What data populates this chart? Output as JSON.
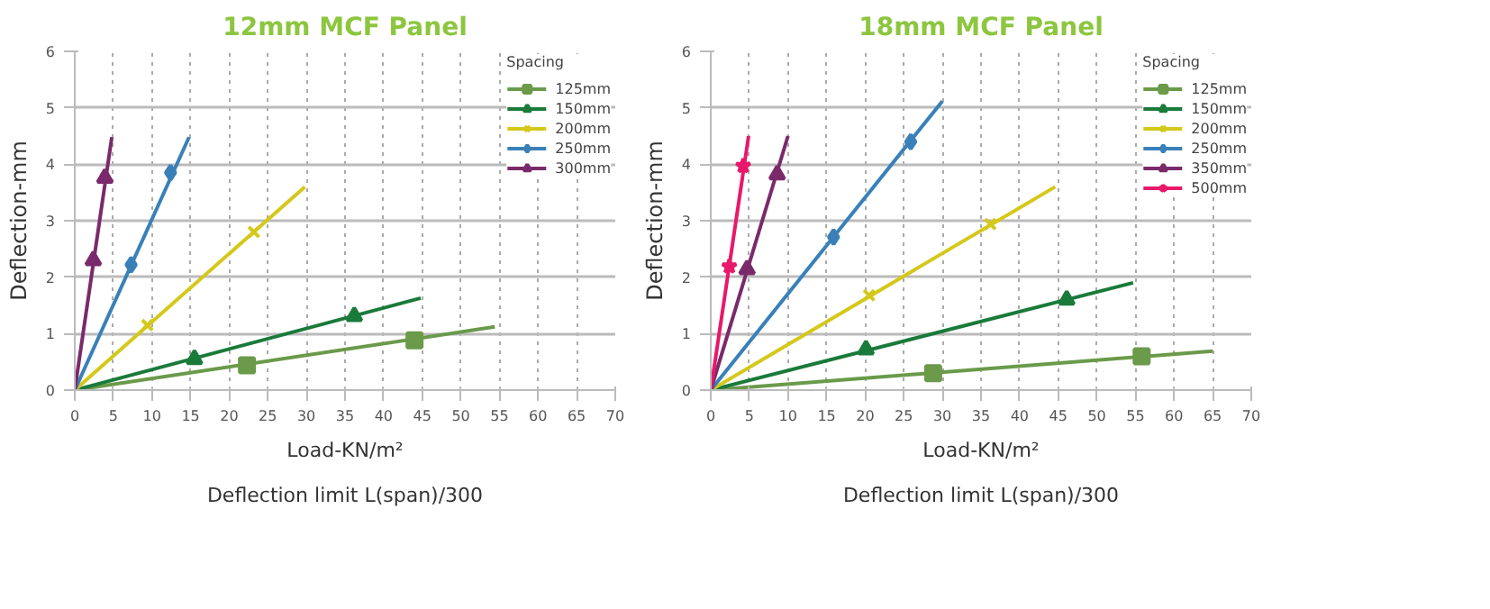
{
  "chart_data": [
    {
      "type": "line",
      "title": "12mm MCF Panel",
      "xlabel": "Load-KN/m²\nDeflection limit L(span)/300",
      "ylabel": "Deflection-mm",
      "legend_title": "Spacing",
      "xlim": [
        0,
        70
      ],
      "ylim": [
        0,
        6
      ],
      "xticks": [
        0,
        5,
        10,
        15,
        20,
        25,
        30,
        35,
        40,
        45,
        50,
        55,
        60,
        65,
        70
      ],
      "yticks": [
        0,
        1,
        2,
        3,
        4,
        5,
        6
      ],
      "grid": true,
      "legend": "right",
      "line_style": "solid",
      "series": [
        {
          "name": "125mm",
          "color": "#6a9a4a",
          "x": [
            0,
            54.4
          ],
          "values": [
            0,
            1.12
          ]
        },
        {
          "type": "scatter",
          "marker": "square",
          "color": "#6a9a4a",
          "x": [
            22.3,
            44
          ],
          "values": [
            0.44,
            0.88
          ]
        },
        {
          "name": "150mm",
          "color": "#1a7a3a",
          "x": [
            0,
            44.8
          ],
          "values": [
            0,
            1.63
          ]
        },
        {
          "type": "scatter",
          "marker": "triangle",
          "color": "#1a7a3a",
          "x": [
            15.5,
            36.2
          ],
          "values": [
            0.55,
            1.31
          ]
        },
        {
          "name": "200mm",
          "color": "#d4c81a",
          "x": [
            0,
            29.8
          ],
          "values": [
            0,
            3.6
          ]
        },
        {
          "type": "scatter",
          "marker": "cross",
          "color": "#d4c81a",
          "x": [
            9.4,
            23.2
          ],
          "values": [
            1.15,
            2.8
          ]
        },
        {
          "name": "250mm",
          "color": "#3a80b8",
          "x": [
            0,
            14.8
          ],
          "values": [
            0,
            4.48
          ]
        },
        {
          "type": "scatter",
          "marker": "diamond",
          "color": "#3a80b8",
          "x": [
            7.3,
            12.4
          ],
          "values": [
            2.22,
            3.85
          ]
        },
        {
          "name": "300mm",
          "color": "#7a2a6a",
          "x": [
            0,
            4.8
          ],
          "values": [
            0,
            4.48
          ]
        },
        {
          "type": "scatter",
          "marker": "triangle",
          "color": "#7a2a6a",
          "x": [
            2.4,
            3.9
          ],
          "values": [
            2.3,
            3.76
          ]
        }
      ]
    },
    {
      "type": "line",
      "title": "18mm MCF Panel",
      "xlabel": "Load-KN/m²\nDeflection limit L(span)/300",
      "ylabel": "Deflection-mm",
      "legend_title": "Spacing",
      "xlim": [
        0,
        70
      ],
      "ylim": [
        0,
        6
      ],
      "xticks": [
        0,
        5,
        10,
        15,
        20,
        25,
        30,
        35,
        40,
        45,
        50,
        55,
        60,
        65,
        70
      ],
      "yticks": [
        0,
        1,
        2,
        3,
        4,
        5,
        6
      ],
      "grid": true,
      "legend": "right",
      "line_style": "solid",
      "series": [
        {
          "name": "125mm",
          "color": "#6a9a4a",
          "x": [
            0,
            65
          ],
          "values": [
            0,
            0.69
          ]
        },
        {
          "type": "scatter",
          "marker": "square",
          "color": "#6a9a4a",
          "x": [
            28.8,
            55.8
          ],
          "values": [
            0.3,
            0.6
          ]
        },
        {
          "name": "150mm",
          "color": "#1a7a3a",
          "x": [
            0,
            54.7
          ],
          "values": [
            0,
            1.9
          ]
        },
        {
          "type": "scatter",
          "marker": "triangle",
          "color": "#1a7a3a",
          "x": [
            20.1,
            46.1
          ],
          "values": [
            0.72,
            1.6
          ]
        },
        {
          "name": "200mm",
          "color": "#d4c81a",
          "x": [
            0,
            44.6
          ],
          "values": [
            0,
            3.6
          ]
        },
        {
          "type": "scatter",
          "marker": "cross",
          "color": "#d4c81a",
          "x": [
            20.5,
            36.2
          ],
          "values": [
            1.68,
            2.94
          ]
        },
        {
          "name": "250mm",
          "color": "#3a80b8",
          "x": [
            0,
            30
          ],
          "values": [
            0,
            5.12
          ]
        },
        {
          "type": "scatter",
          "marker": "diamond",
          "color": "#3a80b8",
          "x": [
            15.9,
            25.9
          ],
          "values": [
            2.71,
            4.4
          ]
        },
        {
          "name": "350mm",
          "color": "#7a2a6a",
          "x": [
            0,
            10
          ],
          "values": [
            0,
            4.5
          ]
        },
        {
          "type": "scatter",
          "marker": "triangle",
          "color": "#7a2a6a",
          "x": [
            4.7,
            8.6
          ],
          "values": [
            2.14,
            3.82
          ]
        },
        {
          "name": "500mm",
          "color": "#e8186a",
          "x": [
            0,
            4.9
          ],
          "values": [
            0,
            4.5
          ]
        },
        {
          "type": "scatter",
          "marker": "star",
          "color": "#e8186a",
          "x": [
            2.4,
            4.2
          ],
          "values": [
            2.19,
            3.97
          ]
        }
      ]
    }
  ]
}
